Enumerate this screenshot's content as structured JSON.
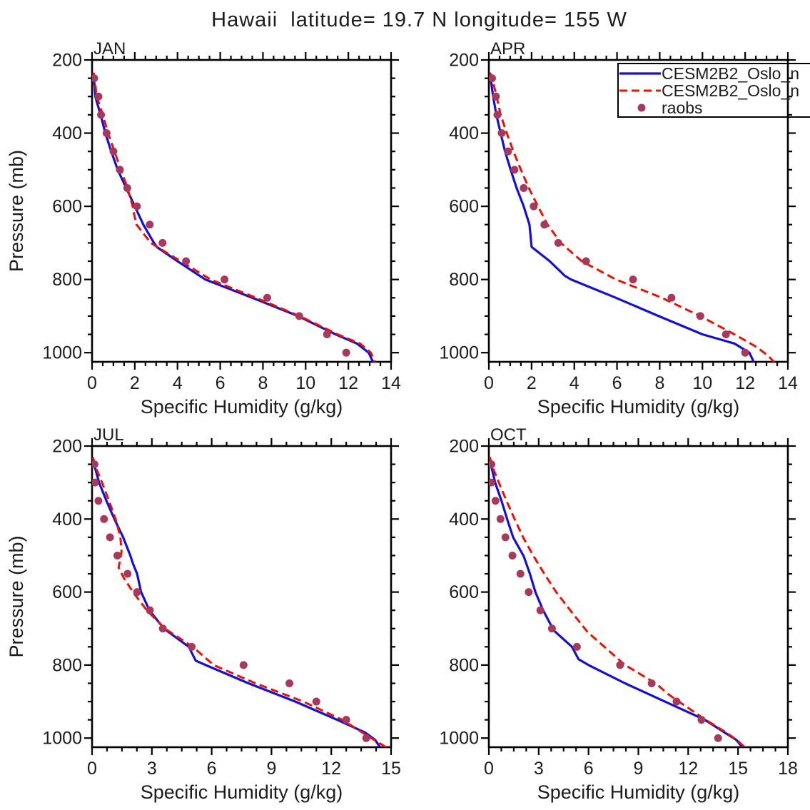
{
  "title": "Hawaii  latitude= 19.7 N longitude= 155 W",
  "y_axis_title": "Pressure (mb)",
  "x_axis_title": "Specific Humidity (g/kg)",
  "colors": {
    "model_solid": "#140fd8",
    "model_dashed": "#ee1000",
    "raobs": "#a73a5c",
    "axis": "#000000"
  },
  "legend": {
    "position": "top-right-of-APR-panel",
    "entries": [
      {
        "label": "CESM2B2_Oslo_n",
        "style": "solid-line",
        "color": "#140fd8"
      },
      {
        "label": "CESM2B2_Oslo_n",
        "style": "dashed-line",
        "color": "#ee1000"
      },
      {
        "label": "raobs",
        "style": "dot",
        "color": "#a73a5c"
      }
    ]
  },
  "chart_data": [
    {
      "type": "line",
      "label": "JAN",
      "xlabel": "Specific Humidity (g/kg)",
      "ylabel": "Pressure (mb)",
      "xlim": [
        0,
        14
      ],
      "x_major": 2,
      "x_minor": 0.5,
      "ylim": [
        200,
        1025
      ],
      "y_major": 200,
      "y_minor": 50,
      "y_inverted": true,
      "grid": false,
      "series": {
        "model_solid": [
          [
            0.07,
            235
          ],
          [
            0.15,
            300
          ],
          [
            0.4,
            350
          ],
          [
            0.62,
            400
          ],
          [
            0.9,
            450
          ],
          [
            1.2,
            500
          ],
          [
            1.6,
            550
          ],
          [
            2.0,
            600
          ],
          [
            2.4,
            650
          ],
          [
            2.9,
            700
          ],
          [
            3.05,
            712
          ],
          [
            4.0,
            750
          ],
          [
            5.3,
            800
          ],
          [
            7.5,
            850
          ],
          [
            9.65,
            900
          ],
          [
            11.4,
            950
          ],
          [
            12.4,
            975
          ],
          [
            12.95,
            1000
          ],
          [
            13.15,
            1025
          ]
        ],
        "model_dashed": [
          [
            0.07,
            235
          ],
          [
            0.22,
            300
          ],
          [
            0.5,
            350
          ],
          [
            0.75,
            400
          ],
          [
            1.05,
            450
          ],
          [
            1.35,
            500
          ],
          [
            1.66,
            550
          ],
          [
            1.9,
            600
          ],
          [
            1.96,
            620
          ],
          [
            2.08,
            650
          ],
          [
            2.75,
            700
          ],
          [
            4.15,
            750
          ],
          [
            5.55,
            800
          ],
          [
            7.68,
            850
          ],
          [
            9.72,
            900
          ],
          [
            11.5,
            950
          ],
          [
            12.55,
            975
          ],
          [
            13.05,
            1000
          ],
          [
            13.25,
            1025
          ]
        ],
        "raobs": [
          [
            0.1,
            250
          ],
          [
            0.3,
            300
          ],
          [
            0.42,
            350
          ],
          [
            0.68,
            400
          ],
          [
            1.0,
            450
          ],
          [
            1.3,
            500
          ],
          [
            1.65,
            550
          ],
          [
            2.1,
            600
          ],
          [
            2.7,
            650
          ],
          [
            3.3,
            700
          ],
          [
            4.4,
            750
          ],
          [
            6.2,
            800
          ],
          [
            8.2,
            850
          ],
          [
            9.7,
            900
          ],
          [
            11.0,
            950
          ],
          [
            11.9,
            1000
          ]
        ]
      }
    },
    {
      "type": "line",
      "label": "APR",
      "xlabel": "Specific Humidity (g/kg)",
      "ylabel": "Pressure (mb)",
      "xlim": [
        0,
        14
      ],
      "x_major": 2,
      "x_minor": 0.5,
      "ylim": [
        200,
        1025
      ],
      "y_major": 200,
      "y_minor": 50,
      "y_inverted": true,
      "grid": false,
      "series": {
        "model_solid": [
          [
            0.05,
            235
          ],
          [
            0.2,
            300
          ],
          [
            0.35,
            350
          ],
          [
            0.55,
            400
          ],
          [
            0.76,
            450
          ],
          [
            1.02,
            500
          ],
          [
            1.3,
            550
          ],
          [
            1.63,
            600
          ],
          [
            1.9,
            650
          ],
          [
            2.0,
            711
          ],
          [
            2.85,
            750
          ],
          [
            3.56,
            790
          ],
          [
            3.85,
            800
          ],
          [
            5.95,
            850
          ],
          [
            7.95,
            900
          ],
          [
            10.0,
            950
          ],
          [
            11.5,
            975
          ],
          [
            12.2,
            1000
          ],
          [
            12.4,
            1025
          ]
        ],
        "model_dashed": [
          [
            0.05,
            235
          ],
          [
            0.16,
            250
          ],
          [
            0.36,
            300
          ],
          [
            0.55,
            350
          ],
          [
            0.84,
            400
          ],
          [
            1.15,
            450
          ],
          [
            1.5,
            500
          ],
          [
            1.87,
            550
          ],
          [
            2.3,
            600
          ],
          [
            2.75,
            650
          ],
          [
            3.37,
            700
          ],
          [
            4.35,
            750
          ],
          [
            5.95,
            800
          ],
          [
            8.1,
            850
          ],
          [
            9.9,
            900
          ],
          [
            11.5,
            950
          ],
          [
            12.55,
            985
          ],
          [
            13.1,
            1010
          ],
          [
            13.35,
            1025
          ]
        ],
        "raobs": [
          [
            0.15,
            250
          ],
          [
            0.33,
            300
          ],
          [
            0.4,
            350
          ],
          [
            0.6,
            400
          ],
          [
            0.9,
            450
          ],
          [
            1.2,
            500
          ],
          [
            1.63,
            550
          ],
          [
            2.1,
            600
          ],
          [
            2.6,
            650
          ],
          [
            3.25,
            700
          ],
          [
            4.55,
            750
          ],
          [
            6.75,
            800
          ],
          [
            8.55,
            850
          ],
          [
            9.9,
            900
          ],
          [
            11.1,
            950
          ],
          [
            12.0,
            1000
          ]
        ]
      }
    },
    {
      "type": "line",
      "label": "JUL",
      "xlabel": "Specific Humidity (g/kg)",
      "ylabel": "Pressure (mb)",
      "xlim": [
        0,
        15
      ],
      "x_major": 3,
      "x_minor": 0.75,
      "ylim": [
        200,
        1025
      ],
      "y_major": 200,
      "y_minor": 50,
      "y_inverted": true,
      "grid": false,
      "series": {
        "model_solid": [
          [
            0.05,
            231
          ],
          [
            0.1,
            250
          ],
          [
            0.35,
            300
          ],
          [
            0.72,
            350
          ],
          [
            1.12,
            400
          ],
          [
            1.56,
            450
          ],
          [
            1.92,
            500
          ],
          [
            2.05,
            522
          ],
          [
            2.26,
            550
          ],
          [
            2.46,
            600
          ],
          [
            2.88,
            650
          ],
          [
            3.6,
            700
          ],
          [
            4.85,
            750
          ],
          [
            5.2,
            788
          ],
          [
            5.7,
            800
          ],
          [
            7.85,
            850
          ],
          [
            10.2,
            900
          ],
          [
            12.3,
            950
          ],
          [
            13.7,
            985
          ],
          [
            14.2,
            1005
          ],
          [
            14.45,
            1025
          ]
        ],
        "model_dashed": [
          [
            0.05,
            231
          ],
          [
            0.12,
            250
          ],
          [
            0.5,
            300
          ],
          [
            0.85,
            350
          ],
          [
            1.18,
            400
          ],
          [
            1.42,
            450
          ],
          [
            1.48,
            490
          ],
          [
            1.33,
            533
          ],
          [
            1.58,
            560
          ],
          [
            2.05,
            600
          ],
          [
            2.75,
            650
          ],
          [
            3.65,
            700
          ],
          [
            5.05,
            750
          ],
          [
            6.1,
            800
          ],
          [
            8.2,
            850
          ],
          [
            10.6,
            900
          ],
          [
            12.55,
            950
          ],
          [
            14.0,
            1000
          ],
          [
            14.75,
            1025
          ]
        ],
        "raobs": [
          [
            0.12,
            250
          ],
          [
            0.15,
            300
          ],
          [
            0.32,
            350
          ],
          [
            0.6,
            400
          ],
          [
            0.9,
            450
          ],
          [
            1.27,
            500
          ],
          [
            1.78,
            550
          ],
          [
            2.26,
            600
          ],
          [
            2.9,
            650
          ],
          [
            3.55,
            700
          ],
          [
            5.0,
            750
          ],
          [
            7.6,
            800
          ],
          [
            9.9,
            850
          ],
          [
            11.25,
            900
          ],
          [
            12.75,
            950
          ],
          [
            13.75,
            1000
          ]
        ]
      }
    },
    {
      "type": "line",
      "label": "OCT",
      "xlabel": "Specific Humidity (g/kg)",
      "ylabel": "Pressure (mb)",
      "xlim": [
        0,
        18
      ],
      "x_major": 3,
      "x_minor": 0.75,
      "ylim": [
        200,
        1025
      ],
      "y_major": 200,
      "y_minor": 50,
      "y_inverted": true,
      "grid": false,
      "series": {
        "model_solid": [
          [
            0.06,
            230
          ],
          [
            0.12,
            250
          ],
          [
            0.38,
            300
          ],
          [
            0.76,
            350
          ],
          [
            1.1,
            400
          ],
          [
            1.46,
            450
          ],
          [
            2.1,
            502
          ],
          [
            2.47,
            550
          ],
          [
            2.8,
            600
          ],
          [
            3.27,
            650
          ],
          [
            3.9,
            705
          ],
          [
            5.0,
            750
          ],
          [
            5.4,
            784
          ],
          [
            6.0,
            800
          ],
          [
            8.2,
            850
          ],
          [
            10.6,
            900
          ],
          [
            13.0,
            950
          ],
          [
            14.2,
            985
          ],
          [
            14.9,
            1005
          ],
          [
            15.25,
            1025
          ]
        ],
        "model_dashed": [
          [
            0.06,
            230
          ],
          [
            0.16,
            250
          ],
          [
            0.6,
            300
          ],
          [
            1.06,
            350
          ],
          [
            1.55,
            400
          ],
          [
            2.06,
            450
          ],
          [
            2.67,
            500
          ],
          [
            3.34,
            550
          ],
          [
            4.05,
            600
          ],
          [
            4.9,
            650
          ],
          [
            5.95,
            710
          ],
          [
            6.95,
            750
          ],
          [
            8.2,
            800
          ],
          [
            10.05,
            850
          ],
          [
            10.8,
            880
          ],
          [
            11.6,
            905
          ],
          [
            13.05,
            950
          ],
          [
            14.3,
            985
          ],
          [
            15.0,
            1008
          ],
          [
            15.4,
            1025
          ]
        ],
        "raobs": [
          [
            0.15,
            250
          ],
          [
            0.15,
            300
          ],
          [
            0.4,
            350
          ],
          [
            0.7,
            400
          ],
          [
            1.0,
            450
          ],
          [
            1.42,
            500
          ],
          [
            1.9,
            550
          ],
          [
            2.4,
            600
          ],
          [
            3.1,
            650
          ],
          [
            3.8,
            700
          ],
          [
            5.3,
            750
          ],
          [
            7.9,
            800
          ],
          [
            9.8,
            850
          ],
          [
            11.3,
            900
          ],
          [
            12.8,
            950
          ],
          [
            13.8,
            1000
          ]
        ]
      }
    }
  ]
}
